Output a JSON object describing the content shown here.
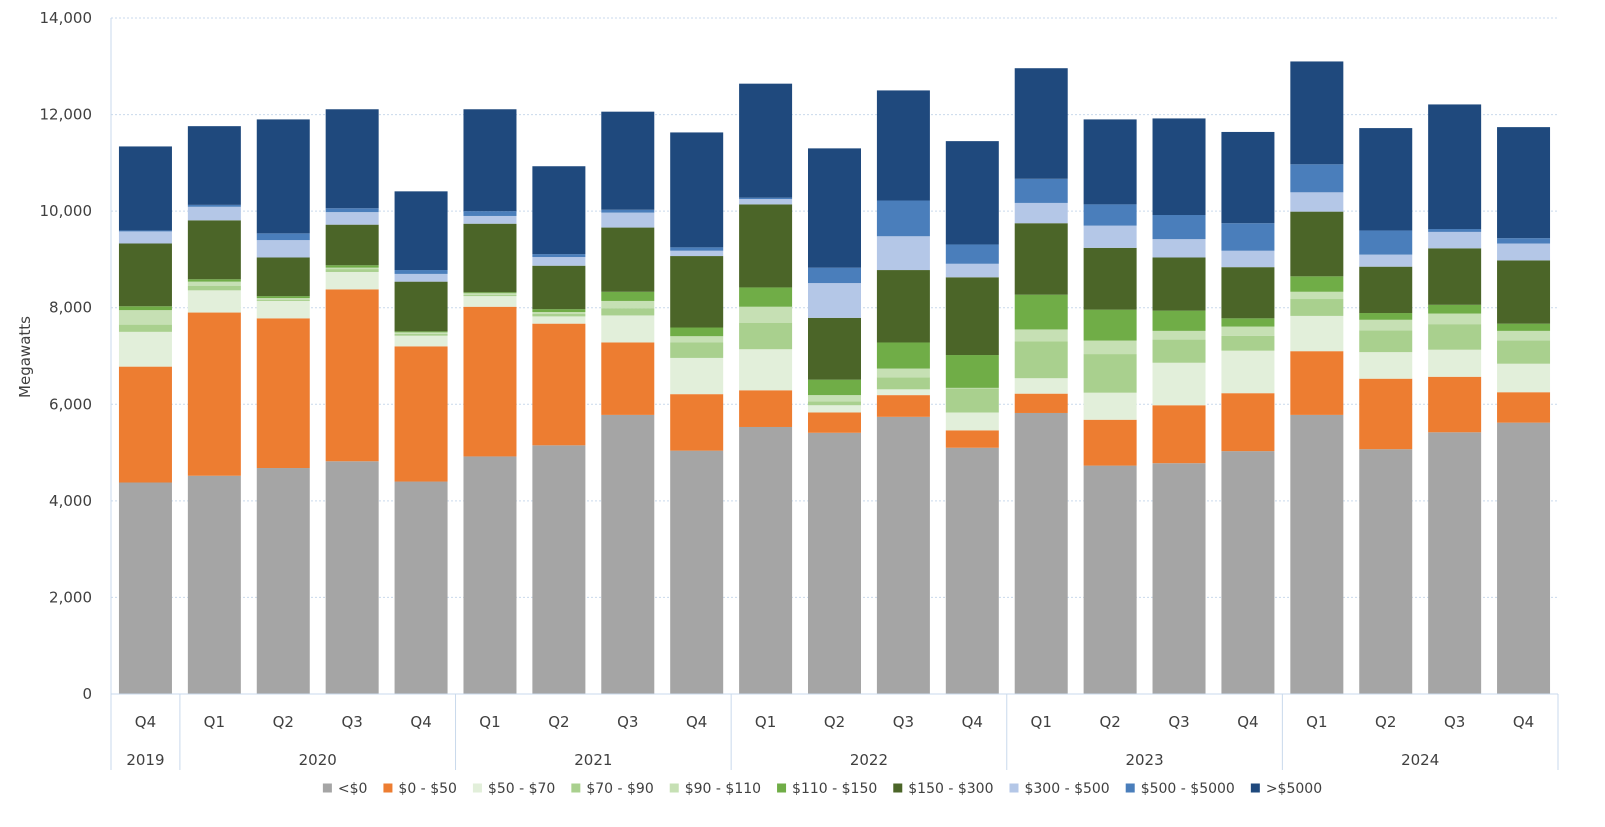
{
  "chart_data": {
    "type": "bar",
    "stacked": true,
    "title": "",
    "xlabel": "",
    "ylabel": "Megawatts",
    "ylim": [
      0,
      14000
    ],
    "yticks": [
      "0",
      "2,000",
      "4,000",
      "6,000",
      "8,000",
      "10,000",
      "12,000",
      "14,000"
    ],
    "grid": true,
    "legend_position": "bottom",
    "categories": [
      "Q4",
      "Q1",
      "Q2",
      "Q3",
      "Q4",
      "Q1",
      "Q2",
      "Q3",
      "Q4",
      "Q1",
      "Q2",
      "Q3",
      "Q4",
      "Q1",
      "Q2",
      "Q3",
      "Q4",
      "Q1",
      "Q2",
      "Q3",
      "Q4"
    ],
    "year_groups": [
      {
        "label": "2019",
        "count": 1
      },
      {
        "label": "2020",
        "count": 4
      },
      {
        "label": "2021",
        "count": 4
      },
      {
        "label": "2022",
        "count": 4
      },
      {
        "label": "2023",
        "count": 4
      },
      {
        "label": "2024",
        "count": 4
      }
    ],
    "series": [
      {
        "name": "<$0",
        "color": "#a5a5a5",
        "values": [
          4380,
          4520,
          4680,
          4820,
          4400,
          4920,
          5150,
          5780,
          5040,
          5530,
          5410,
          5740,
          5100,
          5820,
          4730,
          4780,
          5030,
          5780,
          5070,
          5420,
          5620
        ]
      },
      {
        "name": "$0 - $50",
        "color": "#ed7d31",
        "values": [
          2400,
          3380,
          3100,
          3560,
          2800,
          3100,
          2520,
          1500,
          1170,
          760,
          420,
          450,
          360,
          400,
          950,
          1200,
          1200,
          1320,
          1460,
          1150,
          630
        ]
      },
      {
        "name": "$50 - $70",
        "color": "#e2efda",
        "values": [
          720,
          460,
          360,
          360,
          220,
          220,
          150,
          560,
          750,
          850,
          150,
          120,
          370,
          320,
          560,
          880,
          880,
          730,
          550,
          560,
          590
        ]
      },
      {
        "name": "$70 - $90",
        "color": "#a9d08e",
        "values": [
          150,
          90,
          20,
          60,
          40,
          30,
          50,
          150,
          320,
          550,
          80,
          250,
          500,
          760,
          800,
          480,
          310,
          350,
          450,
          530,
          480
        ]
      },
      {
        "name": "$90 - $110",
        "color": "#c6e0b4",
        "values": [
          300,
          90,
          40,
          30,
          30,
          30,
          40,
          150,
          130,
          330,
          130,
          180,
          10,
          250,
          280,
          180,
          190,
          150,
          220,
          220,
          200
        ]
      },
      {
        "name": "$110 - $150",
        "color": "#70ad47",
        "values": [
          80,
          50,
          40,
          50,
          20,
          20,
          60,
          190,
          180,
          400,
          320,
          540,
          680,
          720,
          640,
          420,
          170,
          320,
          140,
          180,
          150
        ]
      },
      {
        "name": "$150 - $300",
        "color": "#4b6528",
        "values": [
          1300,
          1220,
          800,
          840,
          1030,
          1420,
          900,
          1330,
          1480,
          1720,
          1280,
          1500,
          1610,
          1480,
          1280,
          1100,
          1060,
          1340,
          960,
          1170,
          1310
        ]
      },
      {
        "name": "$300 - $500",
        "color": "#b4c7e7",
        "values": [
          250,
          280,
          360,
          260,
          160,
          160,
          180,
          310,
          110,
          110,
          720,
          700,
          280,
          420,
          460,
          380,
          340,
          400,
          250,
          340,
          350
        ]
      },
      {
        "name": "$500 - $5000",
        "color": "#4a7ebb",
        "values": [
          20,
          40,
          140,
          80,
          80,
          100,
          60,
          60,
          70,
          30,
          320,
          740,
          400,
          500,
          440,
          500,
          570,
          580,
          500,
          60,
          110
        ]
      },
      {
        "name": ">$5000",
        "color": "#1f497d",
        "values": [
          1740,
          1630,
          2360,
          2050,
          1630,
          2110,
          1820,
          2030,
          2380,
          2360,
          2470,
          2280,
          2140,
          2290,
          1760,
          2000,
          1890,
          2130,
          2120,
          2580,
          2300
        ]
      }
    ]
  }
}
